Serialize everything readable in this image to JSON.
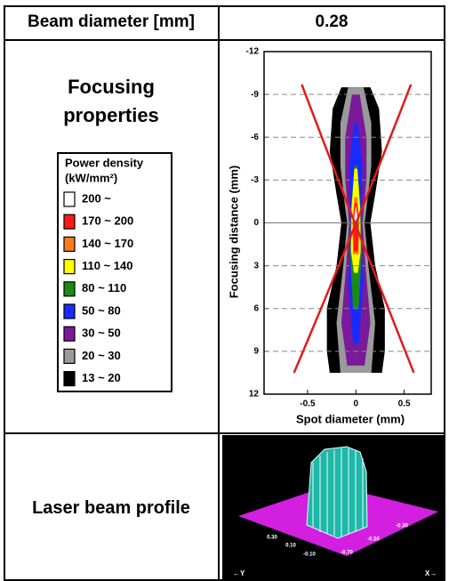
{
  "header": {
    "label": "Beam diameter [mm]",
    "value": "0.28"
  },
  "focusing": {
    "label": "Focusing properties",
    "legend": {
      "title": "Power density",
      "unit": "(kW/mm²)",
      "items": [
        {
          "label": "200 ~",
          "color": "#ffffff"
        },
        {
          "label": "170 ~ 200",
          "color": "#ff1a1a"
        },
        {
          "label": "140 ~ 170",
          "color": "#ff7a1a"
        },
        {
          "label": "110 ~ 140",
          "color": "#ffff00"
        },
        {
          "label": "80 ~ 110",
          "color": "#1a8a1a"
        },
        {
          "label": "50 ~ 80",
          "color": "#1a2aff"
        },
        {
          "label": "30 ~ 50",
          "color": "#7a1a9a"
        },
        {
          "label": "20 ~ 30",
          "color": "#9a9a9a"
        },
        {
          "label": "13 ~ 20",
          "color": "#000000"
        }
      ]
    },
    "chart": {
      "type": "contour",
      "xlabel": "Spot diameter (mm)",
      "ylabel": "Focusing distance (mm)",
      "xlim": [
        -0.95,
        0.78
      ],
      "ylim": [
        12,
        -12
      ],
      "xticks": [
        -0.5,
        0,
        0.5
      ],
      "yticks": [
        -12,
        -9,
        -6,
        -3,
        0,
        3,
        6,
        9,
        12
      ],
      "grid": true
    }
  },
  "profile": {
    "label": "Laser beam profile",
    "axis_labels": [
      "0.30",
      "0.10",
      "-0.10",
      "-0.30",
      "-0.50",
      "-0.70"
    ],
    "y_arrow": "←Y",
    "x_arrow": "X→"
  }
}
